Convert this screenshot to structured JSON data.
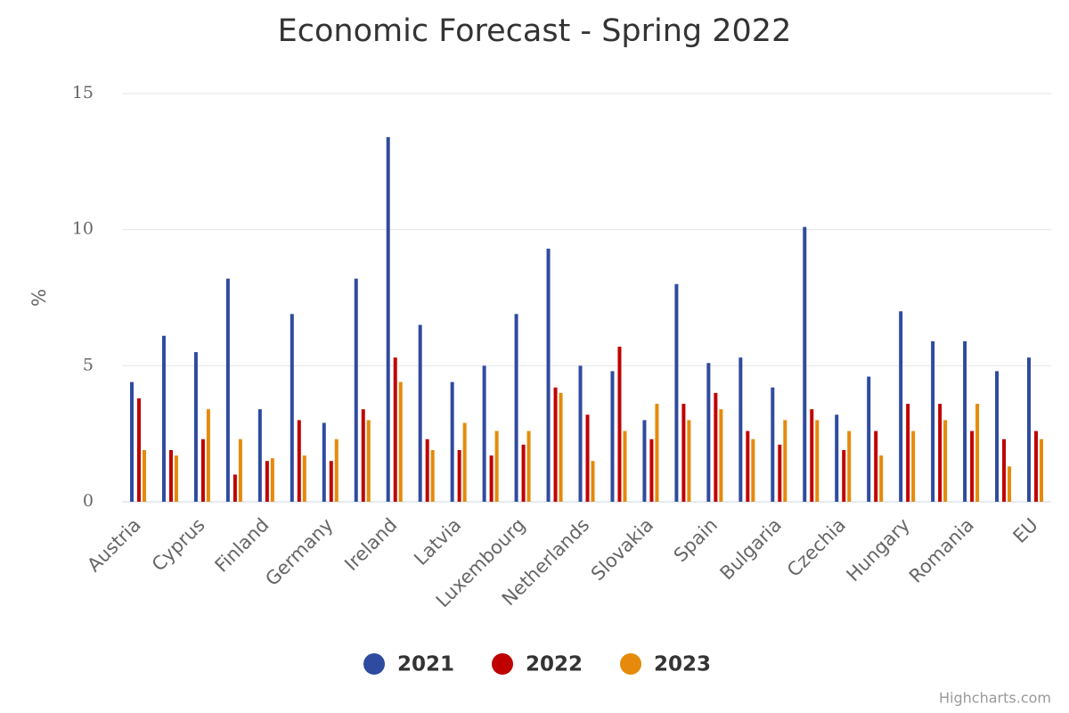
{
  "chart_data": {
    "type": "bar",
    "title": "Economic Forecast - Spring 2022",
    "y_label": "%",
    "credits": "Highcharts.com",
    "categories": [
      "Austria",
      null,
      "Cyprus",
      null,
      "Finland",
      null,
      "Germany",
      null,
      "Ireland",
      null,
      "Latvia",
      null,
      "Luxembourg",
      null,
      "Netherlands",
      null,
      "Slovakia",
      null,
      "Spain",
      null,
      "Bulgaria",
      null,
      "Czechia",
      null,
      "Hungary",
      null,
      "Romania",
      null,
      "EU"
    ],
    "series": [
      {
        "name": "2021",
        "color": "#2f4b9f",
        "values": [
          4.4,
          6.1,
          5.5,
          8.2,
          3.4,
          6.9,
          2.9,
          8.2,
          13.4,
          6.5,
          4.4,
          5.0,
          6.9,
          9.3,
          5.0,
          4.8,
          3.0,
          8.0,
          5.1,
          5.3,
          4.2,
          10.1,
          3.2,
          4.6,
          7.0,
          5.9,
          5.9,
          4.8,
          5.3
        ]
      },
      {
        "name": "2022",
        "color": "#c00000",
        "values": [
          3.8,
          1.9,
          2.3,
          1.0,
          1.5,
          3.0,
          1.5,
          3.4,
          5.3,
          2.3,
          1.9,
          1.7,
          2.1,
          4.2,
          3.2,
          5.7,
          2.3,
          3.6,
          4.0,
          2.6,
          2.1,
          3.4,
          1.9,
          2.6,
          3.6,
          3.6,
          2.6,
          2.3,
          2.6
        ]
      },
      {
        "name": "2023",
        "color": "#e58a0a",
        "values": [
          1.9,
          1.7,
          3.4,
          2.3,
          1.6,
          1.7,
          2.3,
          3.0,
          4.4,
          1.9,
          2.9,
          2.6,
          2.6,
          4.0,
          1.5,
          2.6,
          3.6,
          3.0,
          3.4,
          2.3,
          3.0,
          3.0,
          2.6,
          1.7,
          2.6,
          3.0,
          3.6,
          1.3,
          2.3
        ]
      }
    ],
    "ylim": [
      0,
      15
    ],
    "yticks": [
      0,
      5,
      10,
      15
    ],
    "grid": true
  }
}
